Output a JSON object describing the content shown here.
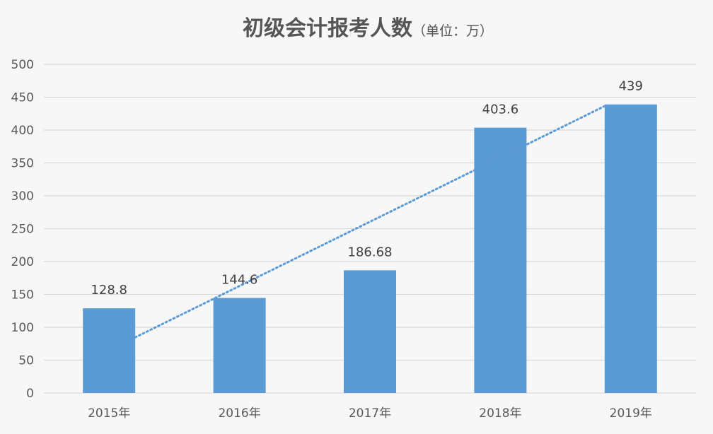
{
  "chart_data": {
    "type": "bar",
    "title": "初级会计报考人数",
    "subtitle": "（单位：万）",
    "categories": [
      "2015年",
      "2016年",
      "2017年",
      "2018年",
      "2019年"
    ],
    "values": [
      128.8,
      144.6,
      186.68,
      403.6,
      439
    ],
    "data_labels": [
      "128.8",
      "144.6",
      "186.68",
      "403.6",
      "439"
    ],
    "ylim": [
      0,
      500
    ],
    "yticks": [
      "0",
      "50",
      "100",
      "150",
      "200",
      "250",
      "300",
      "350",
      "400",
      "450",
      "500"
    ],
    "grid": true,
    "trendline": "linear",
    "colors": {
      "bar": "#5b9bd5",
      "trendline": "#5b9bd5",
      "grid": "#d9d9d9",
      "background": "#f7f7f7"
    }
  }
}
